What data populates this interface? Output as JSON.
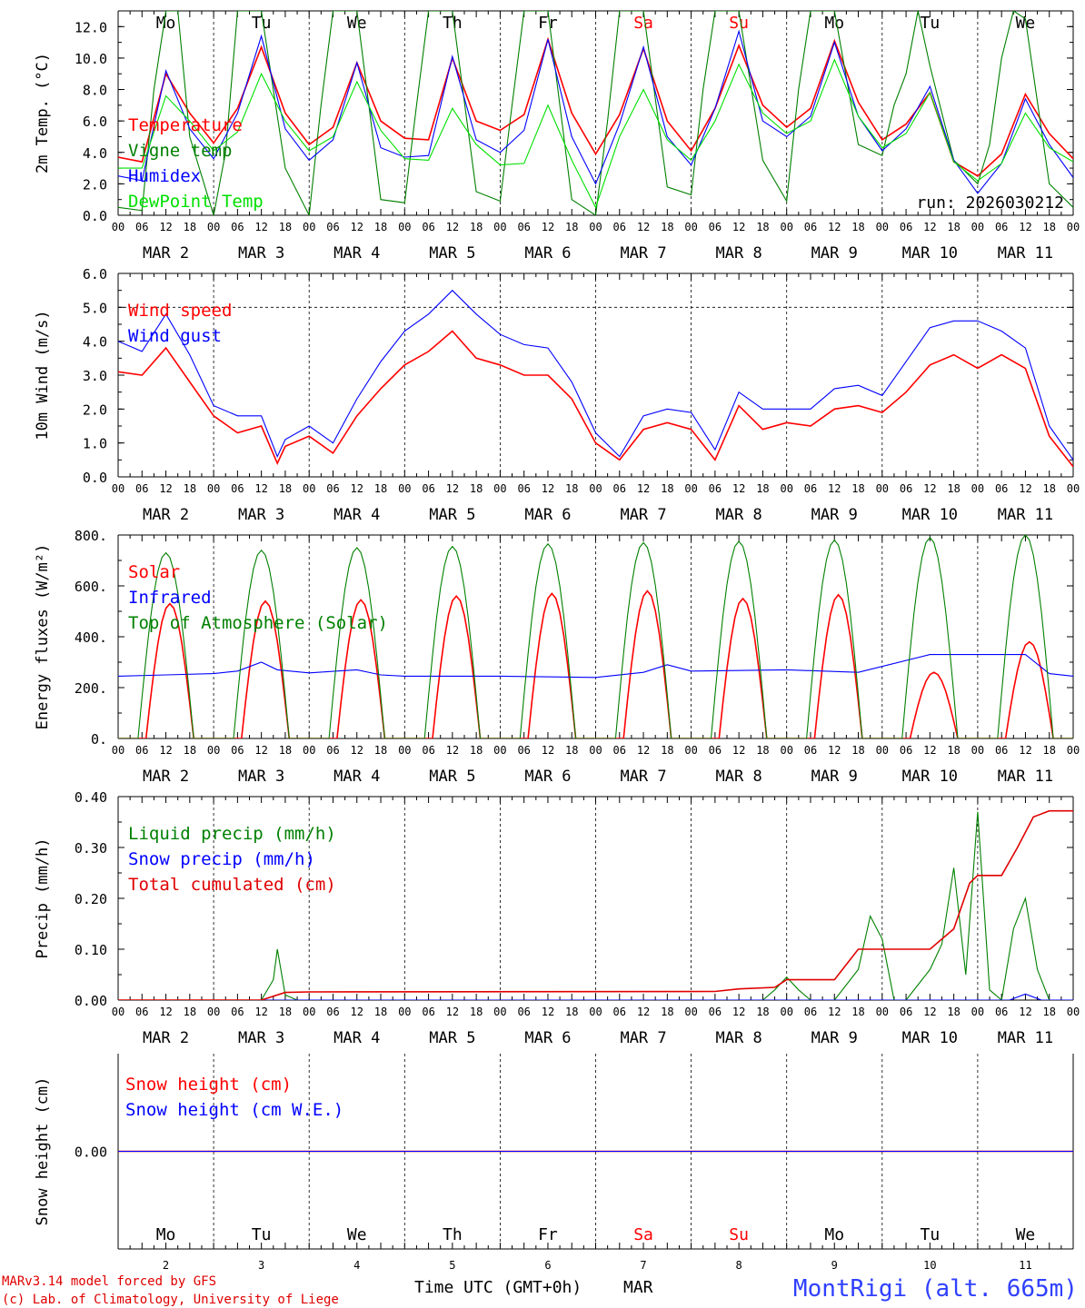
{
  "chart_data": [
    {
      "id": "temp",
      "type": "line",
      "ylabel": "2m Temp. (°C)",
      "ylim": [
        0,
        13
      ],
      "yticks": [
        "0.0",
        "2.0",
        "4.0",
        "6.0",
        "8.0",
        "10.0",
        "12.0"
      ],
      "ytick_values": [
        0,
        2,
        4,
        6,
        8,
        10,
        12
      ],
      "run_label": "run: 2026030212",
      "series": [
        {
          "name": "Temperature",
          "color": "#ff0000",
          "legend_label": "Temperature",
          "x": [
            0,
            6,
            12,
            18,
            24,
            30,
            36,
            42,
            48,
            54,
            60,
            66,
            72,
            78,
            84,
            90,
            96,
            102,
            108,
            114,
            120,
            126,
            132,
            138,
            144,
            150,
            156,
            162,
            168,
            174,
            180,
            186,
            192,
            198,
            204,
            210,
            216,
            222,
            228,
            234,
            240
          ],
          "values": [
            3.7,
            3.4,
            9.0,
            6.5,
            4.6,
            6.8,
            10.7,
            6.5,
            4.5,
            5.6,
            9.7,
            6.0,
            4.9,
            4.8,
            10.0,
            6.0,
            5.4,
            6.4,
            11.2,
            6.5,
            3.9,
            6.4,
            10.6,
            6.0,
            4.1,
            6.8,
            10.8,
            7.0,
            5.6,
            6.8,
            11.1,
            7.2,
            4.8,
            5.8,
            7.8,
            3.4,
            2.5,
            3.9,
            7.7,
            5.2,
            3.6
          ]
        },
        {
          "name": "Vigne temp",
          "color": "#008000",
          "legend_label": "Vigne temp",
          "x": [
            0,
            6,
            9,
            12,
            15,
            18,
            24,
            27,
            30,
            33,
            36,
            42,
            48,
            51,
            54,
            57,
            60,
            66,
            72,
            75,
            78,
            81,
            84,
            90,
            96,
            99,
            102,
            105,
            108,
            114,
            120,
            123,
            126,
            129,
            132,
            138,
            144,
            147,
            150,
            153,
            156,
            162,
            168,
            171,
            174,
            177,
            180,
            186,
            192,
            195,
            198,
            201,
            204,
            210,
            216,
            219,
            222,
            225,
            228,
            234,
            240
          ],
          "values": [
            0.5,
            0.3,
            8.0,
            13.0,
            13.0,
            5.0,
            0.0,
            4.0,
            13.0,
            13.0,
            13.0,
            3.0,
            0.0,
            7.0,
            13.0,
            13.0,
            13.0,
            1.0,
            0.8,
            7.0,
            13.0,
            13.0,
            13.0,
            1.5,
            0.9,
            7.0,
            13.0,
            13.0,
            13.0,
            1.0,
            0.0,
            6.0,
            13.0,
            13.0,
            13.0,
            1.8,
            1.3,
            8.0,
            13.0,
            13.0,
            13.0,
            3.5,
            0.9,
            8.0,
            13.0,
            13.0,
            13.0,
            4.5,
            3.8,
            7.0,
            9.0,
            13.0,
            9.5,
            3.5,
            2.0,
            4.5,
            10.0,
            13.0,
            12.5,
            2.0,
            0.5
          ]
        },
        {
          "name": "Humidex",
          "color": "#0000ff",
          "legend_label": "Humidex",
          "x": [
            0,
            6,
            12,
            18,
            24,
            30,
            36,
            42,
            48,
            54,
            60,
            66,
            72,
            78,
            84,
            90,
            96,
            102,
            108,
            114,
            120,
            126,
            132,
            138,
            144,
            150,
            156,
            162,
            168,
            174,
            180,
            186,
            192,
            198,
            204,
            210,
            216,
            222,
            228,
            234,
            240
          ],
          "values": [
            2.5,
            2.2,
            9.2,
            5.5,
            3.6,
            6.5,
            11.4,
            5.5,
            3.5,
            4.8,
            9.7,
            4.3,
            3.7,
            3.8,
            10.1,
            4.8,
            4.0,
            5.4,
            11.2,
            5.0,
            2.0,
            5.8,
            10.7,
            5.0,
            3.2,
            6.8,
            11.7,
            6.0,
            5.0,
            6.3,
            11.0,
            6.3,
            4.1,
            5.5,
            8.2,
            3.5,
            1.4,
            3.3,
            7.4,
            4.5,
            2.4
          ]
        },
        {
          "name": "DewPoint Temp",
          "color": "#00e000",
          "legend_label": "DewPoint Temp",
          "x": [
            0,
            6,
            12,
            18,
            24,
            30,
            36,
            42,
            48,
            54,
            60,
            66,
            72,
            78,
            84,
            90,
            96,
            102,
            108,
            114,
            120,
            126,
            132,
            138,
            144,
            150,
            156,
            162,
            168,
            174,
            180,
            186,
            192,
            198,
            204,
            210,
            216,
            222,
            228,
            234,
            240
          ],
          "values": [
            3.0,
            3.0,
            7.6,
            6.0,
            4.1,
            5.3,
            9.0,
            6.0,
            4.1,
            5.0,
            8.5,
            5.4,
            3.6,
            3.5,
            6.8,
            4.5,
            3.2,
            3.3,
            7.0,
            3.5,
            0.5,
            5.0,
            8.0,
            4.8,
            3.5,
            6.0,
            9.6,
            6.5,
            5.2,
            6.0,
            9.9,
            6.3,
            4.3,
            5.2,
            7.8,
            3.4,
            2.2,
            3.3,
            6.5,
            4.3,
            3.4
          ]
        }
      ]
    },
    {
      "id": "wind",
      "type": "line",
      "ylabel": "10m Wind (m/s)",
      "ylim": [
        0,
        6
      ],
      "yticks": [
        "0.0",
        "1.0",
        "2.0",
        "3.0",
        "4.0",
        "5.0",
        "6.0"
      ],
      "ytick_values": [
        0,
        1,
        2,
        3,
        4,
        5,
        6
      ],
      "reference_line": 5.0,
      "series": [
        {
          "name": "Wind speed",
          "color": "#ff0000",
          "legend_label": "Wind speed",
          "x": [
            0,
            6,
            12,
            18,
            24,
            30,
            36,
            40,
            42,
            48,
            54,
            60,
            66,
            72,
            78,
            84,
            90,
            96,
            102,
            108,
            114,
            120,
            126,
            132,
            138,
            144,
            150,
            156,
            162,
            168,
            174,
            180,
            186,
            192,
            198,
            204,
            210,
            216,
            222,
            228,
            234,
            240
          ],
          "values": [
            3.1,
            3.0,
            3.8,
            2.8,
            1.8,
            1.3,
            1.5,
            0.4,
            0.9,
            1.2,
            0.7,
            1.8,
            2.6,
            3.3,
            3.7,
            4.3,
            3.5,
            3.3,
            3.0,
            3.0,
            2.3,
            1.0,
            0.5,
            1.4,
            1.6,
            1.4,
            0.5,
            2.1,
            1.4,
            1.6,
            1.5,
            2.0,
            2.1,
            1.9,
            2.5,
            3.3,
            3.6,
            3.2,
            3.6,
            3.2,
            1.2,
            0.3
          ]
        },
        {
          "name": "Wind gust",
          "color": "#0000ff",
          "legend_label": "Wind gust",
          "x": [
            0,
            6,
            12,
            18,
            24,
            30,
            36,
            40,
            42,
            48,
            54,
            60,
            66,
            72,
            78,
            84,
            90,
            96,
            102,
            108,
            114,
            120,
            126,
            132,
            138,
            144,
            150,
            156,
            162,
            168,
            174,
            180,
            186,
            192,
            198,
            204,
            210,
            216,
            222,
            228,
            234,
            240
          ],
          "values": [
            4.0,
            3.7,
            4.8,
            3.6,
            2.1,
            1.8,
            1.8,
            0.6,
            1.1,
            1.5,
            1.0,
            2.3,
            3.4,
            4.3,
            4.8,
            5.5,
            4.8,
            4.2,
            3.9,
            3.8,
            2.8,
            1.3,
            0.6,
            1.8,
            2.0,
            1.9,
            0.8,
            2.5,
            2.0,
            2.0,
            2.0,
            2.6,
            2.7,
            2.4,
            3.4,
            4.4,
            4.6,
            4.6,
            4.3,
            3.8,
            1.5,
            0.5
          ]
        }
      ]
    },
    {
      "id": "flux",
      "type": "line",
      "ylabel": "Energy fluxes (W/m²)",
      "ylim": [
        0,
        800
      ],
      "yticks": [
        "0.",
        "200.",
        "400.",
        "600.",
        "800."
      ],
      "ytick_values": [
        0,
        200,
        400,
        600,
        800
      ],
      "series": [
        {
          "name": "Solar",
          "color": "#ff0000",
          "legend_label": "Solar",
          "peak_hour": 13,
          "half_width": 6,
          "peaks": [
            530,
            540,
            545,
            560,
            570,
            580,
            550,
            565,
            260,
            380
          ]
        },
        {
          "name": "Infrared",
          "color": "#0000ff",
          "legend_label": "Infrared",
          "x": [
            0,
            12,
            24,
            30,
            36,
            40,
            48,
            60,
            66,
            72,
            96,
            120,
            132,
            138,
            144,
            168,
            186,
            204,
            216,
            228,
            234,
            240
          ],
          "values": [
            245,
            250,
            255,
            265,
            300,
            270,
            258,
            270,
            250,
            245,
            245,
            240,
            260,
            290,
            265,
            270,
            260,
            330,
            330,
            330,
            255,
            245
          ]
        },
        {
          "name": "Top of Atmosphere (Solar)",
          "color": "#008000",
          "legend_label": "Top of Atmosphere (Solar)",
          "peak_hour": 12,
          "half_width": 7,
          "peaks": [
            730,
            740,
            750,
            755,
            765,
            770,
            775,
            780,
            790,
            800
          ]
        }
      ]
    },
    {
      "id": "precip",
      "type": "line",
      "ylabel": "Precip (mm/h)",
      "ylim": [
        0,
        0.4
      ],
      "yticks": [
        "0.00",
        "0.10",
        "0.20",
        "0.30",
        "0.40"
      ],
      "ytick_values": [
        0,
        0.1,
        0.2,
        0.3,
        0.4
      ],
      "series": [
        {
          "name": "Liquid precip (mm/h)",
          "color": "#008000",
          "legend_label": "Liquid precip (mm/h)",
          "x": [
            0,
            36,
            39,
            40,
            42,
            45,
            48,
            100,
            150,
            162,
            165,
            168,
            171,
            174,
            180,
            186,
            189,
            192,
            195,
            198,
            204,
            207,
            210,
            213,
            216,
            219,
            222,
            225,
            228,
            231,
            234,
            240
          ],
          "values": [
            0,
            0,
            0.04,
            0.1,
            0.01,
            0,
            0,
            0,
            0,
            0,
            0.02,
            0.045,
            0.02,
            0,
            0,
            0.06,
            0.165,
            0.12,
            0,
            0,
            0.06,
            0.11,
            0.26,
            0.05,
            0.37,
            0.02,
            0,
            0.14,
            0.2,
            0.06,
            0,
            0
          ]
        },
        {
          "name": "Snow precip (mm/h)",
          "color": "#0000ff",
          "legend_label": "Snow precip (mm/h)",
          "x": [
            0,
            224,
            228,
            232,
            240
          ],
          "values": [
            0,
            0,
            0.012,
            0,
            0
          ]
        },
        {
          "name": "Total cumulated (cm)",
          "color": "#e00000",
          "legend_label": "Total cumulated (cm)",
          "x": [
            0,
            36,
            42,
            48,
            150,
            156,
            165,
            168,
            180,
            186,
            192,
            204,
            210,
            214,
            216,
            222,
            226,
            230,
            234,
            240
          ],
          "values": [
            0,
            0,
            0.015,
            0.016,
            0.017,
            0.022,
            0.025,
            0.04,
            0.04,
            0.1,
            0.1,
            0.1,
            0.14,
            0.23,
            0.245,
            0.245,
            0.3,
            0.36,
            0.372,
            0.372
          ]
        }
      ]
    },
    {
      "id": "snow",
      "type": "line",
      "ylabel": "Snow height (cm)",
      "ylim": [
        -1,
        1
      ],
      "yticks": [
        "0.00"
      ],
      "ytick_values": [
        0
      ],
      "series": [
        {
          "name": "Snow height (cm)",
          "color": "#ff0000",
          "legend_label": "Snow height (cm)",
          "x": [
            0,
            240
          ],
          "values": [
            0,
            0
          ]
        },
        {
          "name": "Snow height (cm W.E.)",
          "color": "#0000ff",
          "legend_label": "Snow height (cm W.E.)",
          "x": [
            0,
            240
          ],
          "values": [
            0,
            0
          ]
        }
      ]
    }
  ],
  "axis": {
    "hours_total": 240,
    "hour_labels": [
      "00",
      "06",
      "12",
      "18"
    ],
    "end_label": "00",
    "date_labels": [
      "MAR  2",
      "MAR  3",
      "MAR  4",
      "MAR  5",
      "MAR  6",
      "MAR  7",
      "MAR  8",
      "MAR  9",
      "MAR 10",
      "MAR 11"
    ],
    "days": [
      {
        "label": "Mo",
        "color": "#000000"
      },
      {
        "label": "Tu",
        "color": "#000000"
      },
      {
        "label": "We",
        "color": "#000000"
      },
      {
        "label": "Th",
        "color": "#000000"
      },
      {
        "label": "Fr",
        "color": "#000000"
      },
      {
        "label": "Sa",
        "color": "#ff0000"
      },
      {
        "label": "Su",
        "color": "#ff0000"
      },
      {
        "label": "Mo",
        "color": "#000000"
      },
      {
        "label": "Tu",
        "color": "#000000"
      },
      {
        "label": "We",
        "color": "#000000"
      }
    ],
    "day_numbers": [
      "2",
      "3",
      "4",
      "5",
      "6",
      "7",
      "8",
      "9",
      "10",
      "11"
    ]
  },
  "footer": {
    "model_line": "MARv3.14 model forced by GFS",
    "credit_line": "(c) Lab. of Climatology, University of Liege",
    "xtitle": "Time UTC (GMT+0h)",
    "month": "MAR",
    "station": "MontRigi (alt. 665m)"
  }
}
